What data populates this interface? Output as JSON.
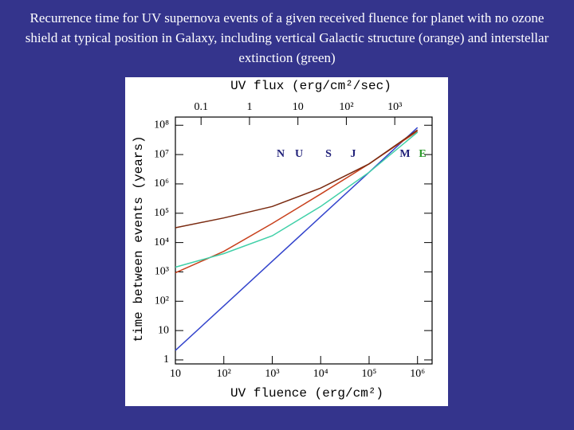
{
  "slide_title": "Recurrence time for UV supernova events of a given received fluence for planet with no ozone shield at typical position in Galaxy, including vertical Galactic structure (orange) and interstellar extinction (green)",
  "chart_data": {
    "type": "line",
    "x_label": "UV fluence (erg/cm²)",
    "x2_label": "UV flux (erg/cm²/sec)",
    "y_label": "time between events (years)",
    "log_x": true,
    "log_y": true,
    "xlim": [
      10,
      2000000
    ],
    "xticks": [
      10,
      {
        "value": 100,
        "label": "10²"
      },
      {
        "value": 1000,
        "label": "10³"
      },
      {
        "value": 10000,
        "label": "10⁴"
      },
      {
        "value": 100000,
        "label": "10⁵"
      },
      {
        "value": 1000000,
        "label": "10⁶"
      }
    ],
    "x2lim": [
      0.0295,
      5900
    ],
    "x2ticks": [
      0.1,
      1,
      10,
      {
        "value": 100,
        "label": "10²"
      },
      {
        "value": 1000,
        "label": "10³"
      }
    ],
    "ylim": [
      0.73,
      190000000
    ],
    "yticks": [
      1,
      10,
      {
        "value": 100,
        "label": "10²"
      },
      {
        "value": 1000,
        "label": "10³"
      },
      {
        "value": 10000,
        "label": "10⁴"
      },
      {
        "value": 100000,
        "label": "10⁵"
      },
      {
        "value": 1000000,
        "label": "10⁶"
      },
      {
        "value": 10000000,
        "label": "10⁷"
      },
      {
        "value": 100000000,
        "label": "10⁸"
      }
    ],
    "x": [
      10,
      100,
      1000,
      10000,
      100000,
      1000000
    ],
    "series": [
      {
        "color": "#3344cc",
        "values": [
          2.1,
          69,
          2300,
          76000,
          2500000,
          83000000
        ]
      },
      {
        "color": "#c8401c",
        "values": [
          930,
          5000,
          45000,
          450000,
          4800000,
          63000000
        ]
      },
      {
        "color": "#40d0a8",
        "values": [
          1450,
          4200,
          17000,
          170000,
          2500000,
          58000000
        ]
      },
      {
        "color": "#7a2a10",
        "values": [
          32000,
          69000,
          170000,
          720000,
          4800000,
          69000000
        ]
      }
    ],
    "annotations": [
      {
        "text": "N",
        "color": "#22227a"
      },
      {
        "text": "U",
        "color": "#22227a"
      },
      {
        "text": "S",
        "color": "#22227a"
      },
      {
        "text": "J",
        "color": "#22227a"
      },
      {
        "text": "M",
        "color": "#22227a"
      },
      {
        "text": "E",
        "color": "#2a9a2a"
      }
    ]
  }
}
